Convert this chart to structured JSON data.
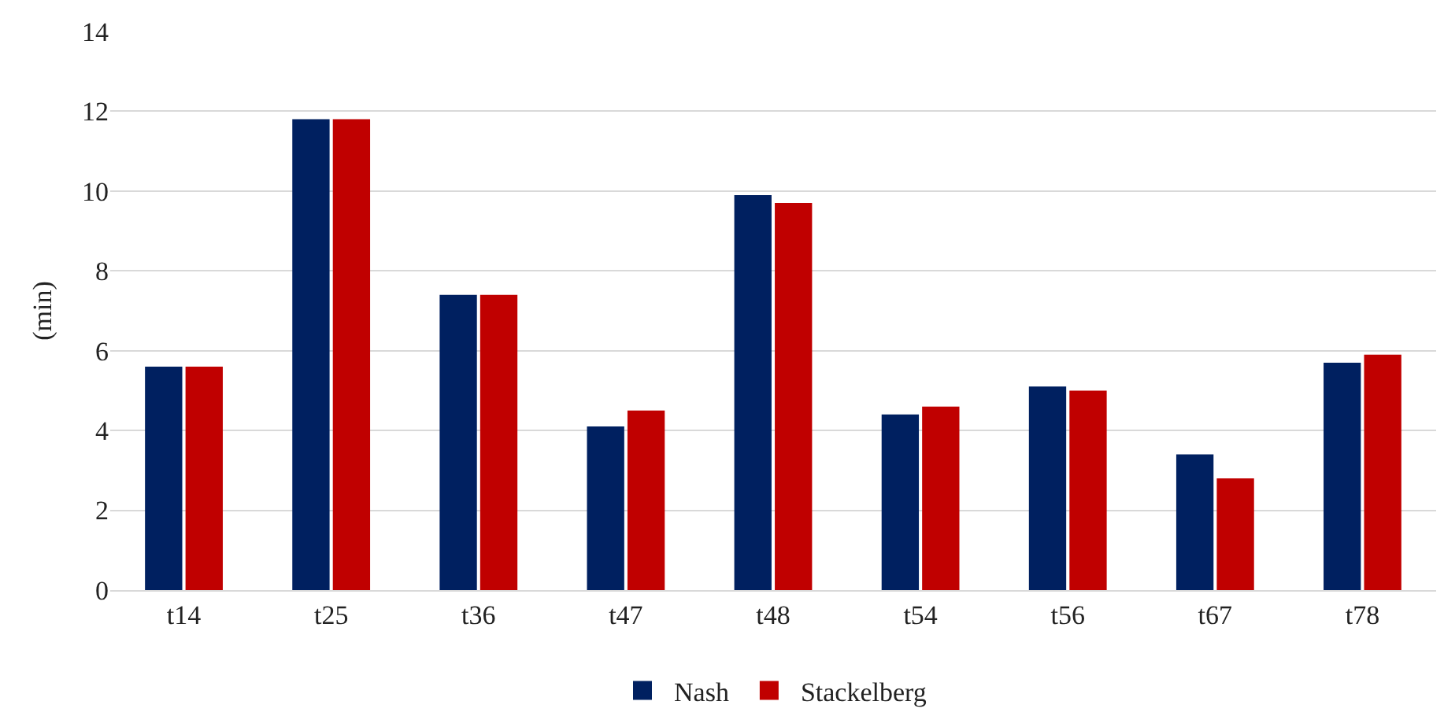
{
  "chart_data": {
    "type": "bar",
    "ylabel": "(min)",
    "categories": [
      "t14",
      "t25",
      "t36",
      "t47",
      "t48",
      "t54",
      "t56",
      "t67",
      "t78"
    ],
    "series": [
      {
        "name": "Nash",
        "color": "#002060",
        "values": [
          5.6,
          11.8,
          7.4,
          4.1,
          9.9,
          4.4,
          5.1,
          3.4,
          5.7
        ]
      },
      {
        "name": "Stackelberg",
        "color": "#c00000",
        "values": [
          5.6,
          11.8,
          7.4,
          4.5,
          9.7,
          4.6,
          5.0,
          2.8,
          5.9
        ]
      }
    ],
    "ylim": [
      0,
      14
    ],
    "yticks": [
      0,
      2,
      4,
      6,
      8,
      10,
      12,
      14
    ],
    "grid": "y",
    "legend": "bottom"
  }
}
